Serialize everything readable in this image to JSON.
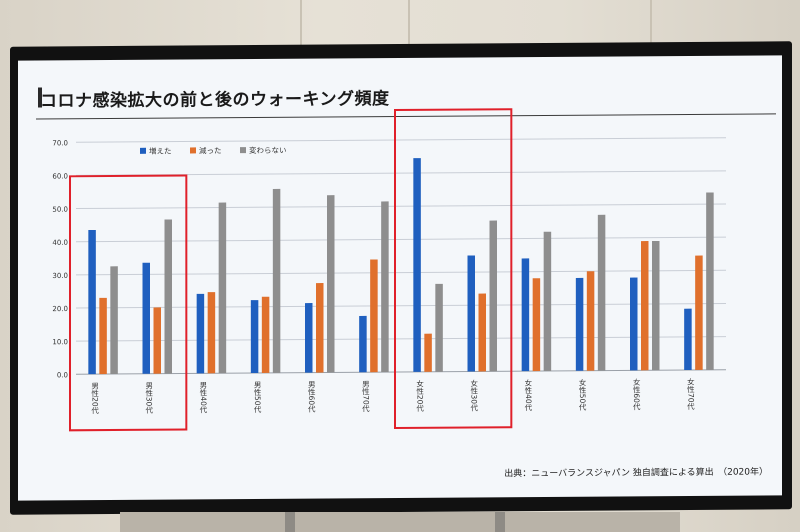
{
  "screen": {
    "title": "コロナ感染拡大の前と後のウォーキング頻度",
    "source": "出典：ニューバランスジャパン 独自調査による算出　（2020年）"
  },
  "colors": {
    "increased": "#1f5fbf",
    "decreased": "#e0702c",
    "unchanged": "#8e8e8e",
    "highlight": "#e0202a",
    "grid": "#c9ced6"
  },
  "chart_data": {
    "type": "bar",
    "categories": [
      "男性20代",
      "男性30代",
      "男性40代",
      "男性50代",
      "男性60代",
      "男性70代",
      "女性20代",
      "女性30代",
      "女性40代",
      "女性50代",
      "女性60代",
      "女性70代"
    ],
    "series": [
      {
        "name": "増えた",
        "values": [
          43.5,
          33.5,
          24.0,
          22.0,
          21.0,
          17.0,
          64.5,
          35.0,
          34.0,
          28.0,
          28.0,
          18.5
        ]
      },
      {
        "name": "減った",
        "values": [
          23.0,
          20.0,
          24.5,
          23.0,
          27.0,
          34.0,
          11.5,
          23.5,
          28.0,
          30.0,
          39.0,
          34.5
        ]
      },
      {
        "name": "変わらない",
        "values": [
          32.5,
          46.5,
          51.5,
          55.5,
          53.5,
          51.5,
          26.5,
          45.5,
          42.0,
          47.0,
          39.0,
          53.5
        ]
      }
    ],
    "yticks": [
      "0.0",
      "10.0",
      "20.0",
      "30.0",
      "40.0",
      "50.0",
      "60.0",
      "70.0"
    ],
    "ylim": [
      0,
      70
    ],
    "grid": true,
    "legend_position": "top-left",
    "highlighted_categories": [
      [
        0,
        1
      ],
      [
        6,
        7
      ]
    ]
  }
}
